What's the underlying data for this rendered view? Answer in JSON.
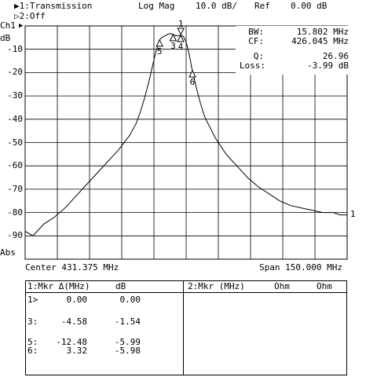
{
  "header": {
    "trace1": "▶1:Transmission",
    "format": "Log Mag",
    "scale": "10.0 dB/",
    "ref_label": "Ref",
    "ref_value": "0.00 dB",
    "trace2": "▷2:Off"
  },
  "channel": {
    "label": "Ch1",
    "arrow": "▶",
    "unit": "dB",
    "abs": "Abs"
  },
  "y_axis_ticks": [
    "-10",
    "-20",
    "-30",
    "-40",
    "-50",
    "-60",
    "-70",
    "-80",
    "-90"
  ],
  "stats": [
    {
      "label": "BW:",
      "value": "15.802 MHz"
    },
    {
      "label": "CF:",
      "value": "426.045 MHz"
    },
    {
      "label": "Q:",
      "value": "26.96"
    },
    {
      "label": "Loss:",
      "value": "-3.99 dB"
    }
  ],
  "footer": {
    "center": "Center 431.375 MHz",
    "span": "Span 150.000 MHz"
  },
  "trace_end_label": "1",
  "chart_data": {
    "type": "line",
    "title": "",
    "center_mhz": 431.375,
    "span_mhz": 150.0,
    "xlim": [
      356.375,
      506.375
    ],
    "ylim": [
      -100,
      0
    ],
    "ylabel": "dB",
    "grid": true,
    "x": [
      356.4,
      360,
      365,
      370,
      375,
      380,
      385,
      390,
      395,
      400,
      405,
      408,
      410,
      412,
      414,
      416,
      417,
      418,
      419,
      420,
      421,
      422,
      423,
      424,
      425,
      426,
      427,
      428,
      429,
      430,
      431,
      432,
      433,
      434,
      436,
      438,
      440,
      445,
      450,
      455,
      460,
      465,
      470,
      475,
      480,
      485,
      490,
      495,
      500,
      503,
      506.4
    ],
    "series": [
      {
        "values": [
          -88,
          -90,
          -85,
          -82,
          -78,
          -73,
          -68,
          -63,
          -58,
          -53,
          -47,
          -42,
          -37,
          -31,
          -24,
          -16,
          -12,
          -9,
          -6,
          -5,
          -4.5,
          -4,
          -3.5,
          -3.3,
          -3.5,
          -4,
          -4.3,
          -4.2,
          -4,
          -4.5,
          -6,
          -9,
          -13,
          -18,
          -26,
          -33,
          -39,
          -48,
          -55,
          -60,
          -65,
          -69,
          -72,
          -75,
          -77,
          -78,
          -79,
          -80,
          -80,
          -81,
          -81
        ]
      }
    ],
    "markers": [
      {
        "label": "1",
        "x": 428.9
      },
      {
        "label": "3",
        "x": 425.3
      },
      {
        "label": "4",
        "x": 428.8
      },
      {
        "label": "5",
        "x": 419.0
      },
      {
        "label": "6",
        "x": 434.3
      }
    ]
  },
  "marker_table": {
    "header": {
      "title": "1:Mkr Δ(MHz)",
      "col": "dB",
      "right": "2:Mkr (MHz)",
      "ohm1": "Ohm",
      "ohm2": "Ohm"
    },
    "rows": [
      {
        "id": "1>",
        "mhz": "0.00",
        "db": "0.00"
      },
      {
        "id": "3:",
        "mhz": "-4.58",
        "db": "-1.54"
      },
      {
        "id": "5:",
        "mhz": "-12.48",
        "db": "-5.99"
      },
      {
        "id": "6:",
        "mhz": "3.32",
        "db": "-5.98"
      }
    ]
  }
}
